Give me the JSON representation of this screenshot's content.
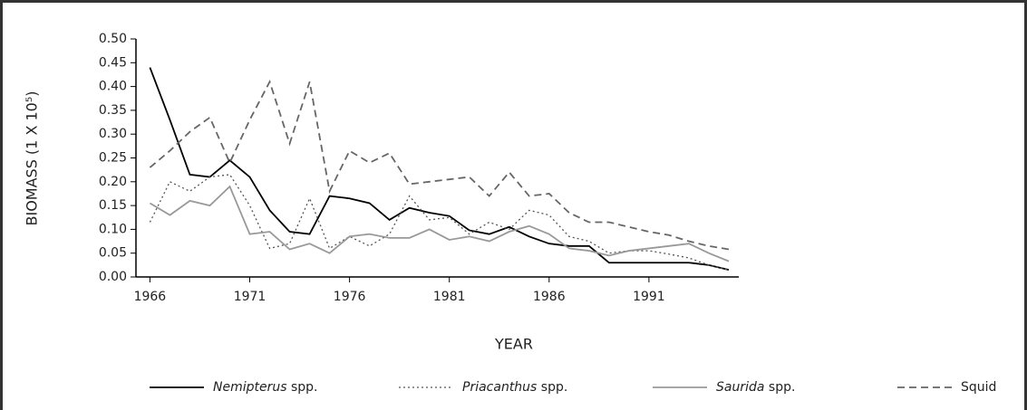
{
  "chart_data": {
    "type": "line",
    "x_label": "YEAR",
    "y_label": "BIOMASS (1 X 10⁵)",
    "x": [
      1966,
      1967,
      1968,
      1969,
      1970,
      1971,
      1972,
      1973,
      1974,
      1975,
      1976,
      1977,
      1978,
      1979,
      1980,
      1981,
      1982,
      1983,
      1984,
      1985,
      1986,
      1987,
      1988,
      1989,
      1990,
      1991,
      1992,
      1993,
      1994,
      1995
    ],
    "xlim": [
      1965.3,
      1995.5
    ],
    "xticks": [
      1966,
      1971,
      1976,
      1981,
      1986,
      1991
    ],
    "ylim": [
      0,
      0.5
    ],
    "yticks": [
      {
        "value": 0,
        "label": "0.00"
      },
      0.05,
      {
        "value": 0.1,
        "label": "0.10"
      },
      0.15,
      {
        "value": 0.2,
        "label": "0.20"
      },
      0.25,
      {
        "value": 0.3,
        "label": "0.30"
      },
      0.35,
      {
        "value": 0.4,
        "label": "0.40"
      },
      0.45,
      {
        "value": 0.5,
        "label": "0.50"
      }
    ],
    "legend": "bottom",
    "series": [
      {
        "name": "Nemipterus spp.",
        "color": "#000000",
        "dash": "solid",
        "italic_genus": true,
        "values": [
          0.44,
          0.33,
          0.215,
          0.21,
          0.245,
          0.21,
          0.14,
          0.095,
          0.09,
          0.17,
          0.165,
          0.155,
          0.12,
          0.145,
          0.135,
          0.128,
          0.098,
          0.09,
          0.105,
          0.085,
          0.07,
          0.065,
          0.065,
          0.03,
          0.03,
          0.03,
          0.03,
          0.03,
          0.025,
          0.015
        ]
      },
      {
        "name": "Priacanthus spp.",
        "color": "#555555",
        "dash": "dotted",
        "italic_genus": true,
        "values": [
          0.115,
          0.2,
          0.18,
          0.21,
          0.215,
          0.15,
          0.06,
          0.07,
          0.165,
          0.06,
          0.085,
          0.065,
          0.09,
          0.17,
          0.12,
          0.125,
          0.09,
          0.115,
          0.1,
          0.14,
          0.13,
          0.085,
          0.075,
          0.05,
          0.055,
          0.055,
          0.048,
          0.04,
          0.025,
          0.015
        ]
      },
      {
        "name": "Saurida spp.",
        "color": "#999999",
        "dash": "solid",
        "italic_genus": true,
        "values": [
          0.155,
          0.13,
          0.16,
          0.15,
          0.19,
          0.09,
          0.095,
          0.058,
          0.07,
          0.05,
          0.085,
          0.09,
          0.082,
          0.082,
          0.1,
          0.078,
          0.085,
          0.075,
          0.095,
          0.107,
          0.09,
          0.06,
          0.055,
          0.045,
          0.055,
          0.06,
          0.065,
          0.07,
          0.05,
          0.033
        ]
      },
      {
        "name": "Squid",
        "color": "#666666",
        "dash": "dashed",
        "italic_genus": false,
        "values": [
          0.23,
          0.265,
          0.305,
          0.335,
          0.24,
          0.33,
          0.41,
          0.28,
          0.41,
          0.18,
          0.265,
          0.24,
          0.26,
          0.195,
          0.2,
          0.205,
          0.21,
          0.17,
          0.22,
          0.17,
          0.175,
          0.135,
          0.115,
          0.115,
          0.105,
          0.095,
          0.088,
          0.075,
          0.065,
          0.058
        ]
      }
    ]
  }
}
